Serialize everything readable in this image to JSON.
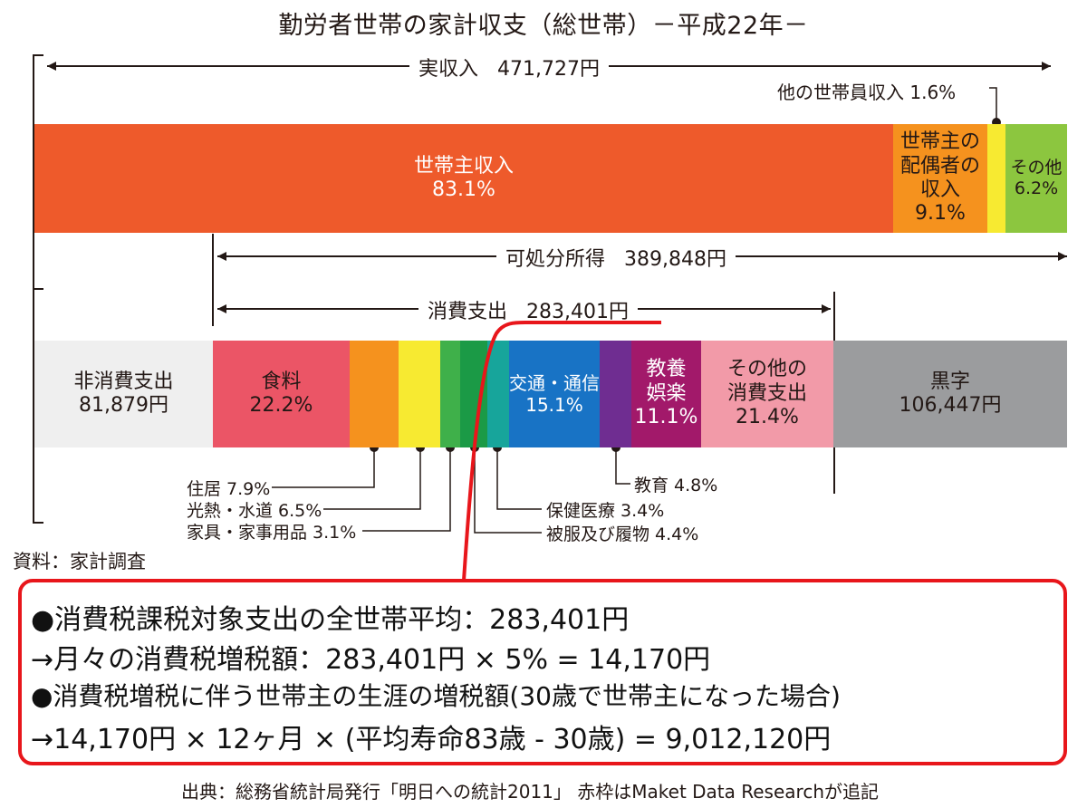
{
  "title": "勤労者世帯の家計収支（総世帯）－平成22年－",
  "chart_data": {
    "type": "bar",
    "title": "勤労者世帯の家計収支（総世帯）－平成22年－",
    "income_bar": {
      "total_label": "実収入",
      "total_value": "471,727円",
      "segments": [
        {
          "id": "head",
          "name": "世帯主収入",
          "percent": 83.1,
          "value_text": "83.1%",
          "color": "#ee5a2b"
        },
        {
          "id": "spouse",
          "name": "世帯主の配偶者の収入",
          "lines": [
            "世帯主の",
            "配偶者の",
            "収入"
          ],
          "percent": 9.1,
          "value_text": "9.1%",
          "color": "#f5921e"
        },
        {
          "id": "other_member",
          "name": "他の世帯員収入",
          "percent": 1.6,
          "value_text": "1.6%",
          "label": "他の世帯員収入 1.6%",
          "color": "#f7ea31"
        },
        {
          "id": "other",
          "name": "その他",
          "percent": 6.2,
          "value_text": "6.2%",
          "color": "#8cc63f"
        }
      ]
    },
    "disposable": {
      "label": "可処分所得",
      "value": "389,848円"
    },
    "consumption": {
      "label": "消費支出",
      "value": "283,401円"
    },
    "expense_bar": {
      "segments": [
        {
          "id": "nonconsumption",
          "name": "非消費支出",
          "value_text": "81,879円",
          "value": 81879,
          "color": "#efefef"
        },
        {
          "id": "food",
          "name": "食料",
          "percent": 22.2,
          "value_text": "22.2%",
          "color": "#eb5566"
        },
        {
          "id": "housing",
          "name": "住居",
          "percent": 7.9,
          "label": "住居 7.9%",
          "color": "#f5921e"
        },
        {
          "id": "utilities",
          "name": "光熱・水道",
          "percent": 6.5,
          "label": "光熱・水道 6.5%",
          "color": "#f7ea31"
        },
        {
          "id": "furniture",
          "name": "家具・家事用品",
          "percent": 3.1,
          "label": "家具・家事用品 3.1%",
          "color": "#3fb04a"
        },
        {
          "id": "clothing",
          "name": "被服及び履物",
          "percent": 4.4,
          "label": "被服及び履物 4.4%",
          "color": "#1b9a46"
        },
        {
          "id": "medical",
          "name": "保健医療",
          "percent": 3.4,
          "label": "保健医療 3.4%",
          "color": "#17a59b"
        },
        {
          "id": "transport",
          "name": "交通・通信",
          "percent": 15.1,
          "value_text": "15.1%",
          "color": "#1873c5"
        },
        {
          "id": "education",
          "name": "教育",
          "percent": 4.8,
          "label": "教育 4.8%",
          "color": "#6f2d91"
        },
        {
          "id": "culture",
          "name": "教養娯楽",
          "lines": [
            "教養",
            "娯楽"
          ],
          "percent": 11.1,
          "value_text": "11.1%",
          "color": "#a2196a"
        },
        {
          "id": "other_consumption",
          "name": "その他の消費支出",
          "lines": [
            "その他の",
            "消費支出"
          ],
          "percent": 21.4,
          "value_text": "21.4%",
          "color": "#f29aa8"
        },
        {
          "id": "surplus",
          "name": "黒字",
          "value_text": "106,447円",
          "value": 106447,
          "color": "#9b9c9e"
        }
      ]
    }
  },
  "source": "資料：家計調査",
  "notes": {
    "line1": "●消費税課税対象支出の全世帯平均：283,401円",
    "line2": "→月々の消費税増税額：283,401円 × 5% = 14,170円",
    "line3": "●消費税増税に伴う世帯主の生涯の増税額(30歳で世帯主になった場合)",
    "line4": "→14,170円 × 12ヶ月 × (平均寿命83歳 - 30歳) = 9,012,120円"
  },
  "footer": "出典：総務省統計局発行「明日への統計2011」 赤枠はMaket Data Researchが追記",
  "colors": {
    "highlight": "#e8161b",
    "line": "#231815"
  }
}
